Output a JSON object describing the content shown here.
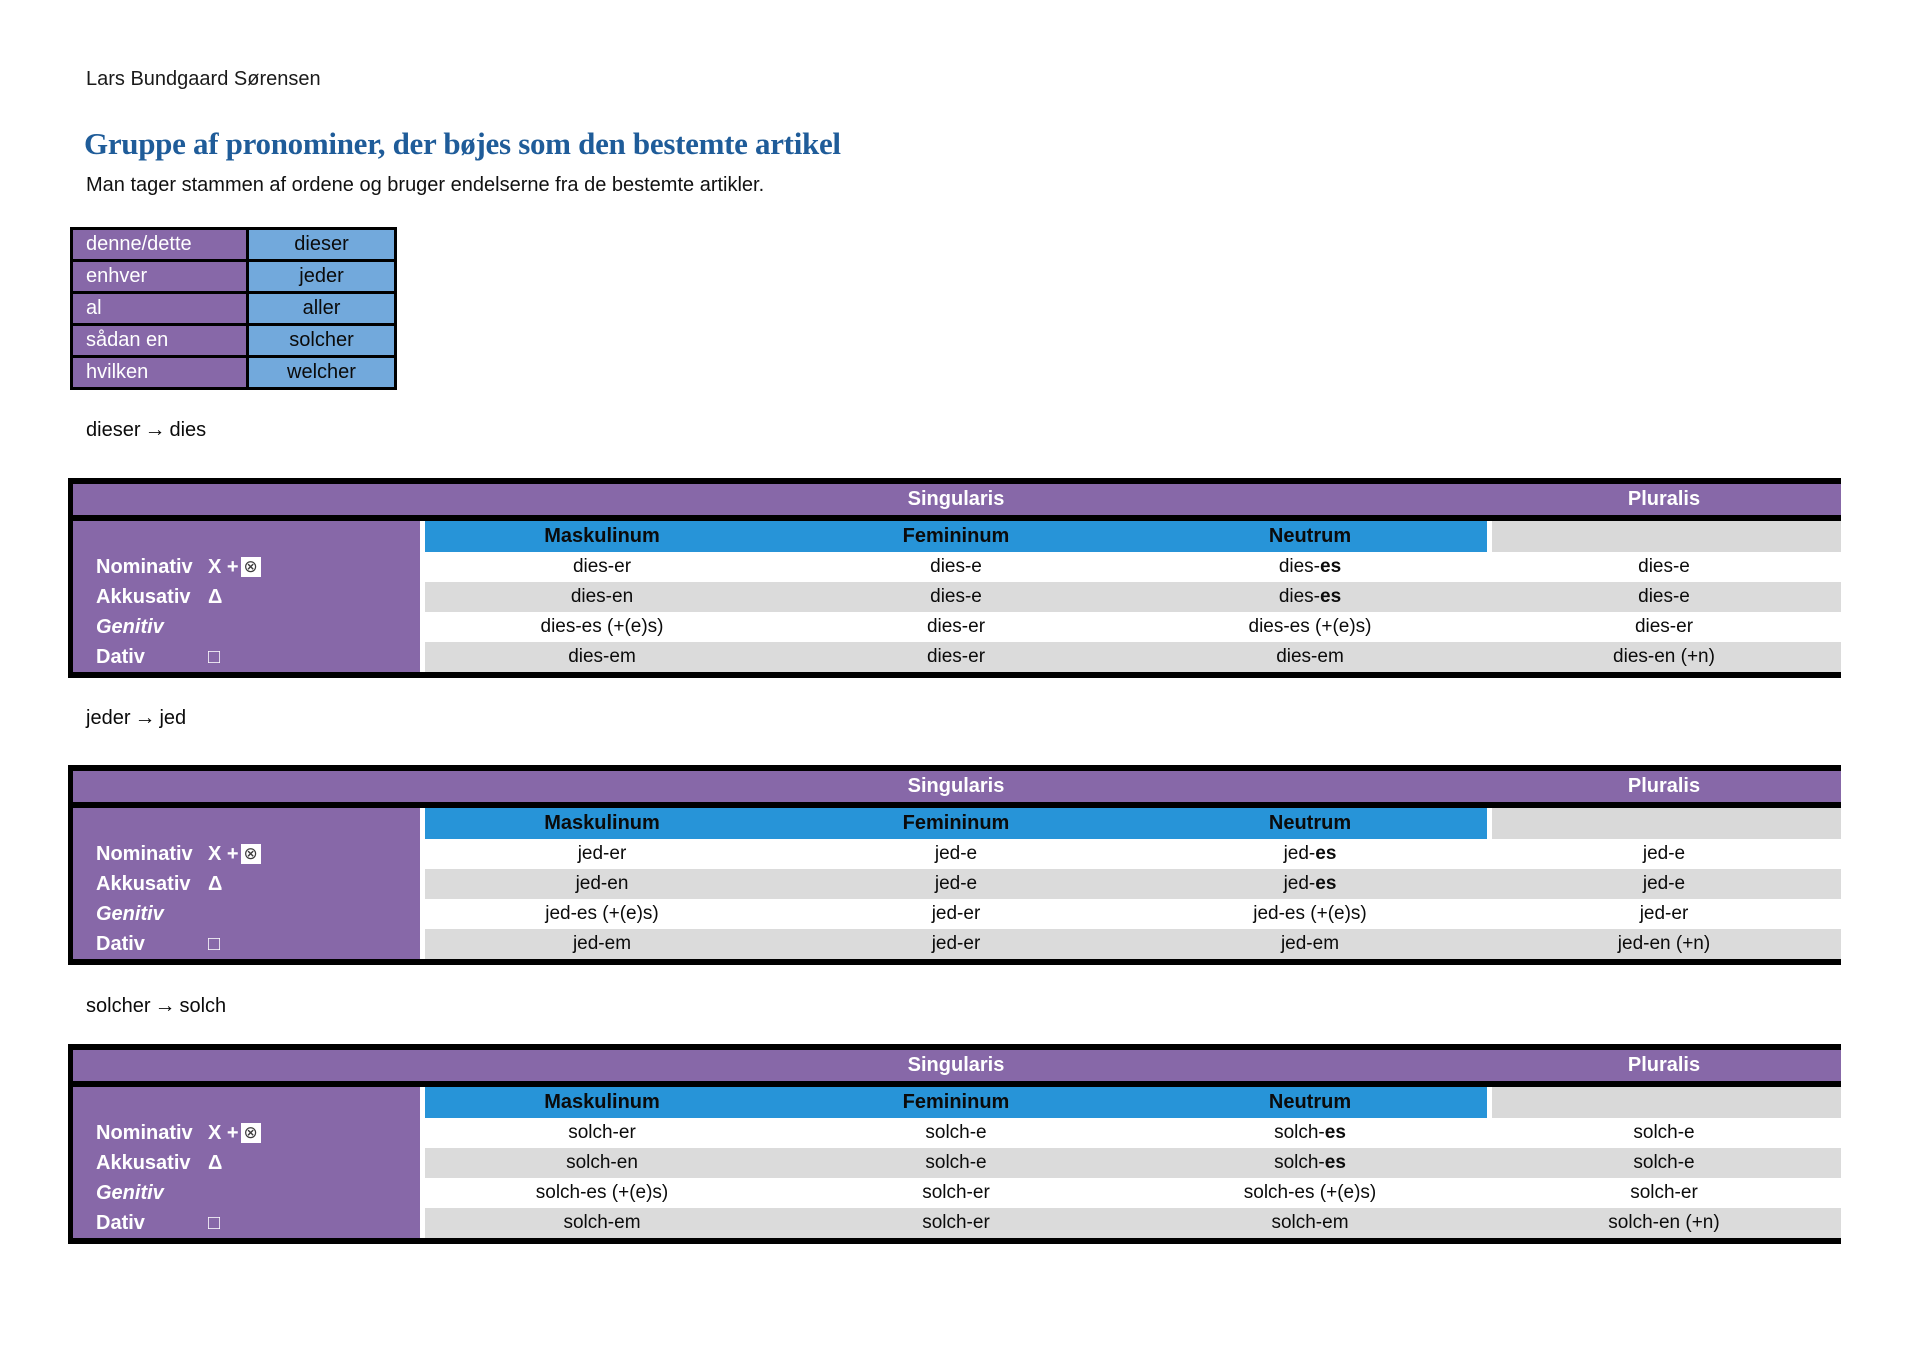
{
  "page": {
    "author": "Lars Bundgaard Sørensen",
    "title": "Gruppe af pronominer, der bøjes som den bestemte artikel",
    "subtitle": "Man tager stammen af ordene og bruger endelserne fra de bestemte artikler.",
    "arrow": "→"
  },
  "colors": {
    "purple": "#8768A8",
    "header_blue": "#2794D8",
    "light_blue": "#72A9DC",
    "row_gray": "#DBDBDB",
    "plural_gray": "#D9D9D9",
    "title_blue": "#1F5C99",
    "symbol_box_bg": "#FFFFFF"
  },
  "pronoun_mapping": [
    {
      "danish": "denne/dette",
      "german": "dieser"
    },
    {
      "danish": "enhver",
      "german": "jeder"
    },
    {
      "danish": "al",
      "german": "aller"
    },
    {
      "danish": "sådan en",
      "german": "solcher"
    },
    {
      "danish": "hvilken",
      "german": "welcher"
    }
  ],
  "declension_headers": {
    "singularis": "Singularis",
    "pluralis": "Pluralis",
    "genders": [
      "Maskulinum",
      "Femininum",
      "Neutrum"
    ]
  },
  "declension_tables": [
    {
      "from": "dieser",
      "to": "dies",
      "rows": [
        {
          "case": "Nominativ",
          "symbol": "X +",
          "symbol_boxed": "⊗",
          "cells": [
            "dies-er",
            "dies-e",
            "dies-*es*",
            "dies-e"
          ]
        },
        {
          "case": "Akkusativ",
          "symbol": "Δ",
          "cells": [
            "dies-en",
            "dies-e",
            "dies-*es*",
            "dies-e"
          ]
        },
        {
          "case": "Genitiv",
          "italic": true,
          "cells": [
            "dies-es (+(e)s)",
            "dies-er",
            "dies-es (+(e)s)",
            "dies-er"
          ]
        },
        {
          "case": "Dativ",
          "symbol": "□",
          "cells": [
            "dies-em",
            "dies-er",
            "dies-em",
            "dies-en (+n)"
          ]
        }
      ]
    },
    {
      "from": "jeder",
      "to": "jed",
      "rows": [
        {
          "case": "Nominativ",
          "symbol": "X +",
          "symbol_boxed": "⊗",
          "cells": [
            "jed-er",
            "jed-e",
            "jed-*es*",
            "jed-e"
          ]
        },
        {
          "case": "Akkusativ",
          "symbol": "Δ",
          "cells": [
            "jed-en",
            "jed-e",
            "jed-*es*",
            "jed-e"
          ]
        },
        {
          "case": "Genitiv",
          "italic": true,
          "cells": [
            "jed-es (+(e)s)",
            "jed-er",
            "jed-es (+(e)s)",
            "jed-er"
          ]
        },
        {
          "case": "Dativ",
          "symbol": "□",
          "cells": [
            "jed-em",
            "jed-er",
            "jed-em",
            "jed-en (+n)"
          ]
        }
      ]
    },
    {
      "from": "solcher",
      "to": "solch",
      "rows": [
        {
          "case": "Nominativ",
          "symbol": "X +",
          "symbol_boxed": "⊗",
          "cells": [
            "solch-er",
            "solch-e",
            "solch-*es*",
            "solch-e"
          ]
        },
        {
          "case": "Akkusativ",
          "symbol": "Δ",
          "cells": [
            "solch-en",
            "solch-e",
            "solch-*es*",
            "solch-e"
          ]
        },
        {
          "case": "Genitiv",
          "italic": true,
          "cells": [
            "solch-es (+(e)s)",
            "solch-er",
            "solch-es (+(e)s)",
            "solch-er"
          ]
        },
        {
          "case": "Dativ",
          "symbol": "□",
          "cells": [
            "solch-em",
            "solch-er",
            "solch-em",
            "solch-en (+n)"
          ]
        }
      ]
    }
  ]
}
